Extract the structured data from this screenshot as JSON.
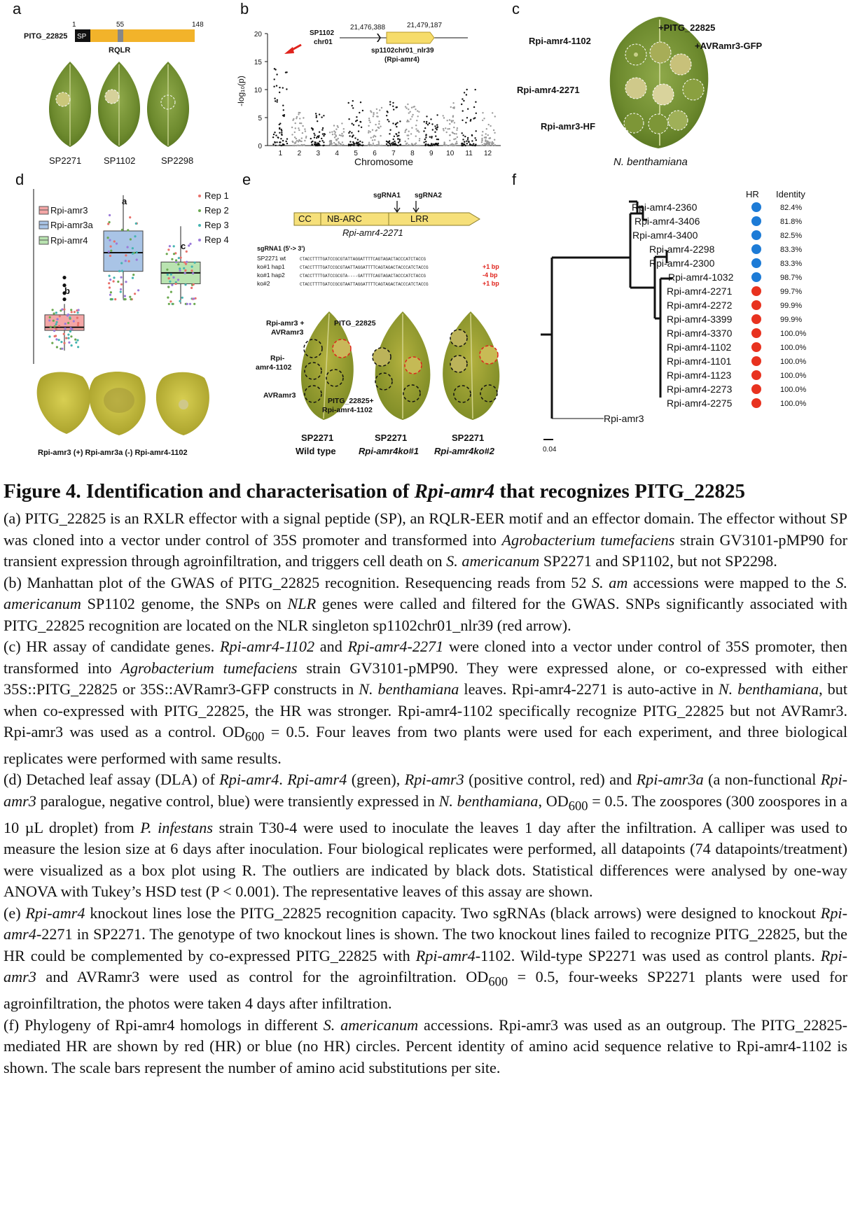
{
  "panels": {
    "a": {
      "letter": "a",
      "protein": "PITG_22825",
      "sp": "SP",
      "pos1": "1",
      "pos55": "55",
      "pos148": "148",
      "motif": "RQLR",
      "leaves": [
        "SP2271",
        "SP1102",
        "SP2298"
      ]
    },
    "b": {
      "letter": "b",
      "ylabel": "-log₁₀(p)",
      "xlabel": "Chromosome",
      "region_label_1": "SP1102",
      "region_label_2": "chr01",
      "coord_start": "21,476,388",
      "coord_end": "21,479,187",
      "gene_label_1": "sp1102chr01_nlr39",
      "gene_label_2": "(Rpi-amr4)"
    },
    "c": {
      "letter": "c",
      "label_effector": "+PITG_22825",
      "label_avr": "+AVRamr3-GFP",
      "rows": [
        "Rpi-amr4-1102",
        "Rpi-amr4-2271",
        "Rpi-amr3-HF"
      ],
      "species": "N. benthamiana"
    },
    "d": {
      "letter": "d",
      "legend": [
        "Rpi-amr3",
        "Rpi-amr3a",
        "Rpi-amr4"
      ],
      "reps": [
        "Rep 1",
        "Rep 2",
        "Rep 3",
        "Rep 4"
      ],
      "group_letters": [
        "b",
        "a",
        "c"
      ],
      "leaf_labels": "Rpi-amr3 (+)  Rpi-amr3a (-)  Rpi-amr4-1102"
    },
    "e": {
      "letter": "e",
      "sgrna1": "sgRNA1",
      "sgrna2": "sgRNA2",
      "domain_cc": "CC",
      "domain_nbarc": "NB-ARC",
      "domain_lrr": "LRR",
      "gene": "Rpi-amr4-2271",
      "seq_title": "sgRNA1 (5'-> 3')",
      "seq_rows": [
        {
          "name": "SP2271 wt",
          "seq": "CTACCTTTTGATCCGCGTATTAGGATTTTCAGTAGACTACCCATCTACCG",
          "mut": ""
        },
        {
          "name": "ko#1 hap1",
          "seq": "CTACCTTTTGATCCGCGTAATTAGGATTTTCAGTAGACTACCCATCTACCG",
          "mut": "+1 bp"
        },
        {
          "name": "ko#1 hap2",
          "seq": "CTACCTTTTGATCCGCGTA----GATTTTCAGTAGACTACCCATCTACCG",
          "mut": "-4 bp"
        },
        {
          "name": "ko#2",
          "seq": "CTACCTTTTGATCCGCGTAATTAGGATTTTCAGTAGACTACCCATCTACCG",
          "mut": "+1 bp"
        }
      ],
      "leaf_label_amr3": "Rpi-amr3 +",
      "leaf_label_amr3b": "AVRamr3",
      "leaf_label_pitg": "PITG_22825",
      "leaf_label_r1": "Rpi-",
      "leaf_label_r2": "amr4-1102",
      "leaf_label_avr": "AVRamr3",
      "leaf_label_combo1": "PITG_22825+",
      "leaf_label_combo2": "Rpi-amr4-1102",
      "bottom_sp": [
        "SP2271",
        "SP2271",
        "SP2271"
      ],
      "bottom_geno": [
        "Wild type",
        "Rpi-amr4ko#1",
        "Rpi-amr4ko#2"
      ]
    },
    "f": {
      "letter": "f",
      "hr_header": "HR",
      "id_header": "Identity",
      "outgroup": "Rpi-amr3",
      "scale": "0.04",
      "taxa": [
        {
          "name": "Rpi-amr4-2360",
          "identity": "82.4%",
          "hr": "blue"
        },
        {
          "name": "Rpi-amr4-3406",
          "identity": "81.8%",
          "hr": "blue"
        },
        {
          "name": "Rpi-amr4-3400",
          "identity": "82.5%",
          "hr": "blue"
        },
        {
          "name": "Rpi-amr4-2298",
          "identity": "83.3%",
          "hr": "blue"
        },
        {
          "name": "Rpi-amr4-2300",
          "identity": "83.3%",
          "hr": "blue"
        },
        {
          "name": "Rpi-amr4-1032",
          "identity": "98.7%",
          "hr": "blue"
        },
        {
          "name": "Rpi-amr4-2271",
          "identity": "99.7%",
          "hr": "red"
        },
        {
          "name": "Rpi-amr4-2272",
          "identity": "99.9%",
          "hr": "red"
        },
        {
          "name": "Rpi-amr4-3399",
          "identity": "99.9%",
          "hr": "red"
        },
        {
          "name": "Rpi-amr4-3370",
          "identity": "100.0%",
          "hr": "red"
        },
        {
          "name": "Rpi-amr4-1102",
          "identity": "100.0%",
          "hr": "red"
        },
        {
          "name": "Rpi-amr4-1101",
          "identity": "100.0%",
          "hr": "red"
        },
        {
          "name": "Rpi-amr4-1123",
          "identity": "100.0%",
          "hr": "red"
        },
        {
          "name": "Rpi-amr4-2273",
          "identity": "100.0%",
          "hr": "red"
        },
        {
          "name": "Rpi-amr4-2275",
          "identity": "100.0%",
          "hr": "red"
        }
      ]
    }
  },
  "chart_data": [
    {
      "type": "scatter",
      "panel": "b",
      "xlabel": "Chromosome",
      "ylabel": "-log₁₀(p)",
      "categories": [
        "1",
        "2",
        "3",
        "4",
        "5",
        "6",
        "7",
        "8",
        "9",
        "10",
        "11",
        "12"
      ],
      "ylim": [
        0,
        20
      ],
      "yticks": [
        0,
        5,
        10,
        15,
        20
      ],
      "peak": {
        "chromosome": "1",
        "value": 14
      }
    },
    {
      "type": "box",
      "panel": "d",
      "categories": [
        "Rpi-amr3",
        "Rpi-amr3a",
        "Rpi-amr4"
      ],
      "group_letters": [
        "b",
        "a",
        "c"
      ],
      "colors": [
        "#f4a6a6",
        "#a9c4e6",
        "#b9e3b0"
      ],
      "series": [
        {
          "name": "Rpi-amr3",
          "q1": 0.18,
          "median": 0.2,
          "q3": 0.28,
          "min": 0.05,
          "max": 0.35
        },
        {
          "name": "Rpi-amr3a",
          "q1": 0.56,
          "median": 0.68,
          "q3": 0.82,
          "min": 0.38,
          "max": 1.05
        },
        {
          "name": "Rpi-amr4",
          "q1": 0.48,
          "median": 0.55,
          "q3": 0.62,
          "min": 0.35,
          "max": 0.85
        }
      ]
    }
  ],
  "caption": {
    "title_pre": "Figure 4. Identification and characterisation of ",
    "title_gene": "Rpi-amr4",
    "title_post": " that recognizes PITG_22825",
    "a": "(a) PITG_22825 is an RXLR effector with a signal peptide (SP), an RQLR-EER motif and an effector domain. The effector without SP was cloned into a vector under control of 35S promoter and transformed into ",
    "a_i1": "Agrobacterium tumefaciens",
    "a_2": " strain GV3101-pMP90 for transient expression through agroinfiltration, and triggers cell death on ",
    "a_i2": "S. americanum",
    "a_3": " SP2271 and SP1102, but not SP2298.",
    "b1": "(b) Manhattan plot of the GWAS of PITG_22825 recognition. Resequencing reads from 52 ",
    "b_i1": "S. am",
    "b2": " accessions were mapped to the ",
    "b_i2": "S. americanum",
    "b3": " SP1102 genome, the SNPs on ",
    "b_i3": "NLR",
    "b4": " genes were called and filtered for the GWAS. SNPs significantly associated with PITG_22825 recognition are located on the NLR singleton sp1102chr01_nlr39 (red arrow).",
    "c1": "(c) HR assay of candidate genes. ",
    "c_i1": "Rpi-amr4-1102",
    "c2": " and ",
    "c_i2": "Rpi-amr4-2271",
    "c3": " were cloned into a vector under control of 35S promoter, then transformed into ",
    "c_i3": "Agrobacterium tumefaciens",
    "c4": " strain GV3101-pMP90. They were expressed alone, or co-expressed with either 35S::PITG_22825 or 35S::AVRamr3-GFP constructs in ",
    "c_i4": "N. benthamiana",
    "c5": " leaves. Rpi-amr4-2271 is auto-active in ",
    "c_i5": "N. benthamiana",
    "c6": ", but when co-expressed with PITG_22825, the HR was stronger. Rpi-amr4-1102 specifically recognize PITG_22825 but not AVRamr3. Rpi-amr3 was used as a control. OD",
    "c_sub": "600",
    "c7": " = 0.5. Four leaves from two plants were used for each experiment, and three biological replicates were performed with same results.",
    "d1": "(d) Detached leaf assay (DLA) of ",
    "d_i1": "Rpi-amr4",
    "d2": ". ",
    "d_i2": "Rpi-amr4",
    "d3": " (green), ",
    "d_i3": "Rpi-amr3",
    "d4": " (positive control, red) and ",
    "d_i4": "Rpi-amr3a",
    "d5": " (a non-functional ",
    "d_i5": "Rpi-amr3",
    "d6": " paralogue, negative control, blue) were transiently expressed in ",
    "d_i6": "N. benthamiana",
    "d7": ", OD",
    "d_sub": "600",
    "d8": " = 0.5. The zoospores (300 zoospores in a 10 µL droplet) from ",
    "d_i7": "P. infestans",
    "d9": " strain T30-4 were used to inoculate the leaves 1 day after the infiltration. A calliper was used to measure the lesion size at 6 days after inoculation. Four biological replicates were performed, all datapoints (74 datapoints/treatment) were visualized as a box plot using R. The outliers are indicated by black dots. Statistical differences were analysed by one-way ANOVA with Tukey’s HSD test (P < 0.001). The representative leaves of this assay are shown.",
    "e1": "(e) ",
    "e_i1": "Rpi-amr4",
    "e2": " knockout lines lose the PITG_22825 recognition capacity. Two sgRNAs (black arrows) were designed to knockout ",
    "e_i2": "Rpi-amr4",
    "e3": "-2271 in SP2271. The genotype of two knockout lines is shown. The two knockout lines failed to recognize PITG_22825, but the HR could be complemented by co-expressed PITG_22825 with ",
    "e_i3": "Rpi-amr4",
    "e4": "-1102. Wild-type SP2271 was used as control plants. ",
    "e_i4": "Rpi-amr3",
    "e5": " and AVRamr3 were used as control for the agroinfiltration. OD",
    "e_sub": "600",
    "e6": " = 0.5, four-weeks SP2271 plants were used for agroinfiltration, the photos were taken 4 days after infiltration.",
    "f1": "(f) Phylogeny of Rpi-amr4 homologs in different ",
    "f_i1": "S. americanum",
    "f2": " accessions. Rpi-amr3 was used as an outgroup. The PITG_22825-mediated HR are shown by red (HR) or blue (no HR) circles. Percent identity of amino acid sequence relative to Rpi-amr4-1102 is shown. The scale bars represent the number of amino acid substitutions per site."
  }
}
